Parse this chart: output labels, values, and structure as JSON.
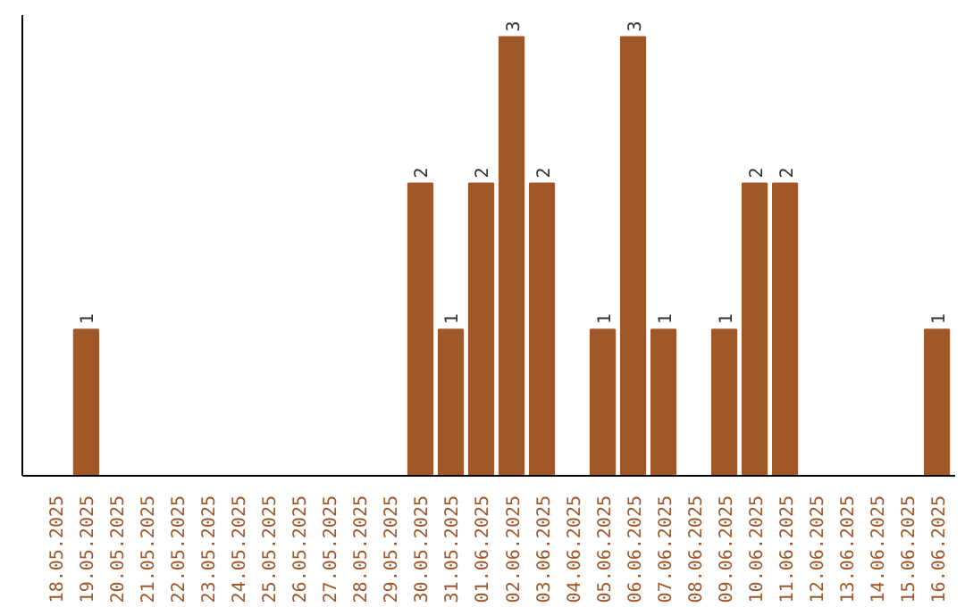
{
  "chart_data": {
    "type": "bar",
    "categories": [
      "18.05.2025",
      "19.05.2025",
      "20.05.2025",
      "21.05.2025",
      "22.05.2025",
      "23.05.2025",
      "24.05.2025",
      "25.05.2025",
      "26.05.2025",
      "27.05.2025",
      "28.05.2025",
      "29.05.2025",
      "30.05.2025",
      "31.05.2025",
      "01.06.2025",
      "02.06.2025",
      "03.06.2025",
      "04.06.2025",
      "05.06.2025",
      "06.06.2025",
      "07.06.2025",
      "08.06.2025",
      "09.06.2025",
      "10.06.2025",
      "11.06.2025",
      "12.06.2025",
      "13.06.2025",
      "14.06.2025",
      "15.06.2025",
      "16.06.2025"
    ],
    "values": [
      0,
      1,
      0,
      0,
      0,
      0,
      0,
      0,
      0,
      0,
      0,
      0,
      2,
      1,
      2,
      3,
      2,
      0,
      1,
      3,
      1,
      0,
      1,
      2,
      2,
      0,
      0,
      0,
      0,
      1
    ],
    "value_labels": [
      null,
      "1",
      null,
      null,
      null,
      null,
      null,
      null,
      null,
      null,
      null,
      null,
      "2",
      "1",
      "2",
      "3",
      "2",
      null,
      "1",
      "3",
      "1",
      null,
      "1",
      "2",
      "2",
      null,
      null,
      null,
      null,
      "1"
    ],
    "color": "#a0572a",
    "ylim": [
      0,
      3.15
    ],
    "tick_labels": "x",
    "grid": false
  }
}
